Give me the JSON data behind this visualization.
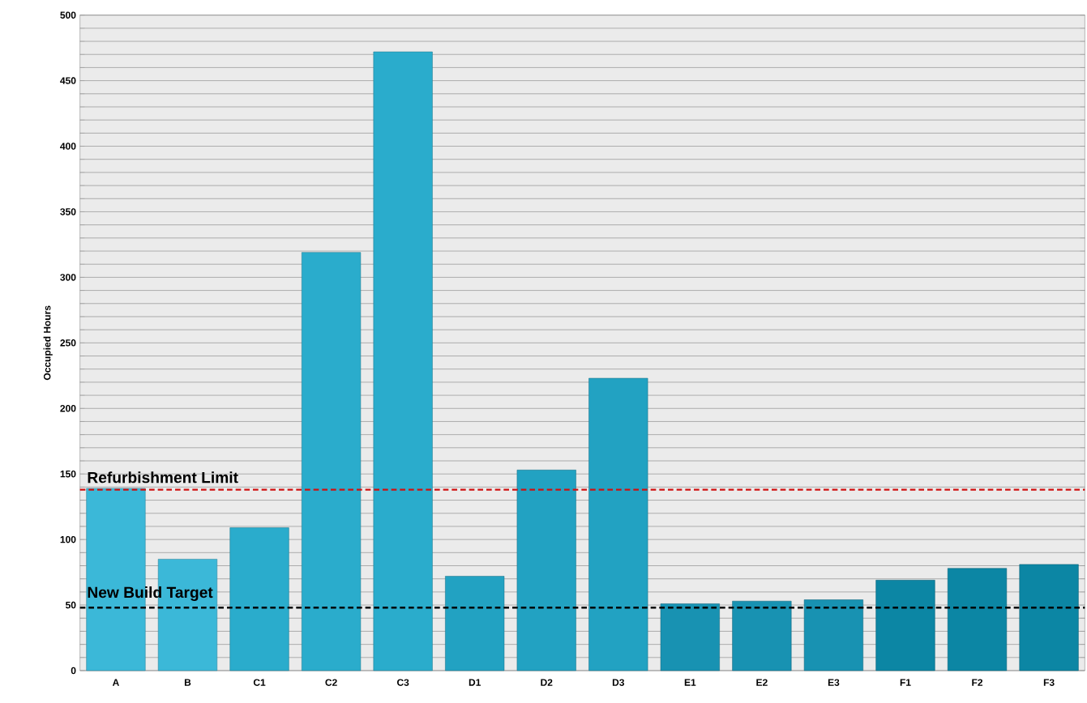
{
  "chart_data": {
    "type": "bar",
    "ylabel": "Occupied Hours",
    "categories": [
      "A",
      "B",
      "C1",
      "C2",
      "C3",
      "D1",
      "D2",
      "D3",
      "E1",
      "E2",
      "E3",
      "F1",
      "F2",
      "F3"
    ],
    "values": [
      139,
      85,
      109,
      319,
      472,
      72,
      153,
      223,
      51,
      53,
      54,
      69,
      78,
      81
    ],
    "colors": [
      "#3bb8d8",
      "#3bb8d8",
      "#2aaccc",
      "#2aaccc",
      "#2aaccc",
      "#22a2c2",
      "#22a2c2",
      "#22a2c2",
      "#1892b2",
      "#1892b2",
      "#1892b2",
      "#0c86a4",
      "#0c86a4",
      "#0c86a4"
    ],
    "ylim": [
      0,
      500
    ],
    "yticks": [
      0,
      {
        "value": 10,
        "label": null
      },
      {
        "value": 20,
        "label": null
      },
      {
        "value": 30,
        "label": null
      },
      {
        "value": 40,
        "label": null
      },
      50,
      {
        "value": 60,
        "label": null
      },
      {
        "value": 70,
        "label": null
      },
      {
        "value": 80,
        "label": null
      },
      {
        "value": 90,
        "label": null
      },
      100,
      {
        "value": 110,
        "label": null
      },
      {
        "value": 120,
        "label": null
      },
      {
        "value": 130,
        "label": null
      },
      {
        "value": 140,
        "label": null
      },
      150,
      {
        "value": 160,
        "label": null
      },
      {
        "value": 170,
        "label": null
      },
      {
        "value": 180,
        "label": null
      },
      {
        "value": 190,
        "label": null
      },
      200,
      {
        "value": 210,
        "label": null
      },
      {
        "value": 220,
        "label": null
      },
      {
        "value": 230,
        "label": null
      },
      {
        "value": 240,
        "label": null
      },
      250,
      {
        "value": 260,
        "label": null
      },
      {
        "value": 270,
        "label": null
      },
      {
        "value": 280,
        "label": null
      },
      {
        "value": 290,
        "label": null
      },
      300,
      {
        "value": 310,
        "label": null
      },
      {
        "value": 320,
        "label": null
      },
      {
        "value": 330,
        "label": null
      },
      {
        "value": 340,
        "label": null
      },
      350,
      {
        "value": 360,
        "label": null
      },
      {
        "value": 370,
        "label": null
      },
      {
        "value": 380,
        "label": null
      },
      {
        "value": 390,
        "label": null
      },
      400,
      {
        "value": 410,
        "label": null
      },
      {
        "value": 420,
        "label": null
      },
      {
        "value": 430,
        "label": null
      },
      {
        "value": 440,
        "label": null
      },
      450,
      {
        "value": 460,
        "label": null
      },
      {
        "value": 470,
        "label": null
      },
      {
        "value": 480,
        "label": null
      },
      {
        "value": 490,
        "label": null
      },
      500
    ],
    "grid": "y",
    "ref_lines": [
      {
        "axis": "y",
        "value": 138,
        "label": "Refurbishment Limit",
        "color": "#d01010",
        "line_style": "dashed"
      },
      {
        "axis": "y",
        "value": 48,
        "label": "New Build Target",
        "color": "#000000",
        "line_style": "dashed"
      }
    ]
  }
}
